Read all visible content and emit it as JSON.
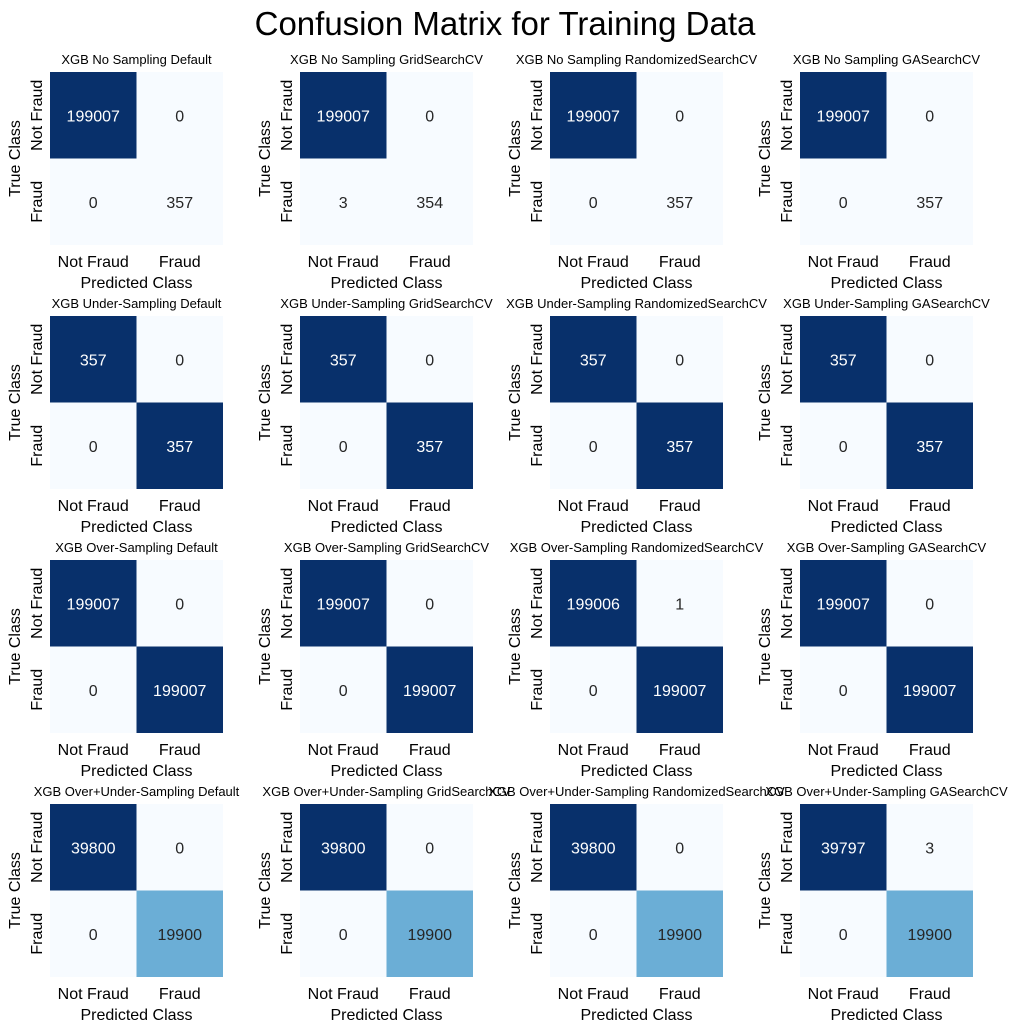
{
  "figure": {
    "title": "Confusion Matrix for Training Data"
  },
  "chart_data": [
    {
      "type": "heatmap",
      "title": "XGB No Sampling Default",
      "xlabel": "Predicted Class",
      "ylabel": "True Class",
      "x_ticks": [
        "Not Fraud",
        "Fraud"
      ],
      "y_ticks": [
        "Not Fraud",
        "Fraud"
      ],
      "matrix": [
        [
          199007,
          0
        ],
        [
          0,
          357
        ]
      ],
      "colormap": "Blues"
    },
    {
      "type": "heatmap",
      "title": "XGB No Sampling GridSearchCV",
      "xlabel": "Predicted Class",
      "ylabel": "True Class",
      "x_ticks": [
        "Not Fraud",
        "Fraud"
      ],
      "y_ticks": [
        "Not Fraud",
        "Fraud"
      ],
      "matrix": [
        [
          199007,
          0
        ],
        [
          3,
          354
        ]
      ],
      "colormap": "Blues"
    },
    {
      "type": "heatmap",
      "title": "XGB No Sampling RandomizedSearchCV",
      "xlabel": "Predicted Class",
      "ylabel": "True Class",
      "x_ticks": [
        "Not Fraud",
        "Fraud"
      ],
      "y_ticks": [
        "Not Fraud",
        "Fraud"
      ],
      "matrix": [
        [
          199007,
          0
        ],
        [
          0,
          357
        ]
      ],
      "colormap": "Blues"
    },
    {
      "type": "heatmap",
      "title": "XGB No Sampling GASearchCV",
      "xlabel": "Predicted Class",
      "ylabel": "True Class",
      "x_ticks": [
        "Not Fraud",
        "Fraud"
      ],
      "y_ticks": [
        "Not Fraud",
        "Fraud"
      ],
      "matrix": [
        [
          199007,
          0
        ],
        [
          0,
          357
        ]
      ],
      "colormap": "Blues"
    },
    {
      "type": "heatmap",
      "title": "XGB Under-Sampling Default",
      "xlabel": "Predicted Class",
      "ylabel": "True Class",
      "x_ticks": [
        "Not Fraud",
        "Fraud"
      ],
      "y_ticks": [
        "Not Fraud",
        "Fraud"
      ],
      "matrix": [
        [
          357,
          0
        ],
        [
          0,
          357
        ]
      ],
      "colormap": "Blues"
    },
    {
      "type": "heatmap",
      "title": "XGB Under-Sampling GridSearchCV",
      "xlabel": "Predicted Class",
      "ylabel": "True Class",
      "x_ticks": [
        "Not Fraud",
        "Fraud"
      ],
      "y_ticks": [
        "Not Fraud",
        "Fraud"
      ],
      "matrix": [
        [
          357,
          0
        ],
        [
          0,
          357
        ]
      ],
      "colormap": "Blues"
    },
    {
      "type": "heatmap",
      "title": "XGB Under-Sampling RandomizedSearchCV",
      "xlabel": "Predicted Class",
      "ylabel": "True Class",
      "x_ticks": [
        "Not Fraud",
        "Fraud"
      ],
      "y_ticks": [
        "Not Fraud",
        "Fraud"
      ],
      "matrix": [
        [
          357,
          0
        ],
        [
          0,
          357
        ]
      ],
      "colormap": "Blues"
    },
    {
      "type": "heatmap",
      "title": "XGB Under-Sampling GASearchCV",
      "xlabel": "Predicted Class",
      "ylabel": "True Class",
      "x_ticks": [
        "Not Fraud",
        "Fraud"
      ],
      "y_ticks": [
        "Not Fraud",
        "Fraud"
      ],
      "matrix": [
        [
          357,
          0
        ],
        [
          0,
          357
        ]
      ],
      "colormap": "Blues"
    },
    {
      "type": "heatmap",
      "title": "XGB Over-Sampling Default",
      "xlabel": "Predicted Class",
      "ylabel": "True Class",
      "x_ticks": [
        "Not Fraud",
        "Fraud"
      ],
      "y_ticks": [
        "Not Fraud",
        "Fraud"
      ],
      "matrix": [
        [
          199007,
          0
        ],
        [
          0,
          199007
        ]
      ],
      "colormap": "Blues"
    },
    {
      "type": "heatmap",
      "title": "XGB Over-Sampling GridSearchCV",
      "xlabel": "Predicted Class",
      "ylabel": "True Class",
      "x_ticks": [
        "Not Fraud",
        "Fraud"
      ],
      "y_ticks": [
        "Not Fraud",
        "Fraud"
      ],
      "matrix": [
        [
          199007,
          0
        ],
        [
          0,
          199007
        ]
      ],
      "colormap": "Blues"
    },
    {
      "type": "heatmap",
      "title": "XGB Over-Sampling RandomizedSearchCV",
      "xlabel": "Predicted Class",
      "ylabel": "True Class",
      "x_ticks": [
        "Not Fraud",
        "Fraud"
      ],
      "y_ticks": [
        "Not Fraud",
        "Fraud"
      ],
      "matrix": [
        [
          199006,
          1
        ],
        [
          0,
          199007
        ]
      ],
      "colormap": "Blues"
    },
    {
      "type": "heatmap",
      "title": "XGB Over-Sampling GASearchCV",
      "xlabel": "Predicted Class",
      "ylabel": "True Class",
      "x_ticks": [
        "Not Fraud",
        "Fraud"
      ],
      "y_ticks": [
        "Not Fraud",
        "Fraud"
      ],
      "matrix": [
        [
          199007,
          0
        ],
        [
          0,
          199007
        ]
      ],
      "colormap": "Blues"
    },
    {
      "type": "heatmap",
      "title": "XGB Over+Under-Sampling Default",
      "xlabel": "Predicted Class",
      "ylabel": "True Class",
      "x_ticks": [
        "Not Fraud",
        "Fraud"
      ],
      "y_ticks": [
        "Not Fraud",
        "Fraud"
      ],
      "matrix": [
        [
          39800,
          0
        ],
        [
          0,
          19900
        ]
      ],
      "colormap": "Blues"
    },
    {
      "type": "heatmap",
      "title": "XGB Over+Under-Sampling GridSearchCV",
      "xlabel": "Predicted Class",
      "ylabel": "True Class",
      "x_ticks": [
        "Not Fraud",
        "Fraud"
      ],
      "y_ticks": [
        "Not Fraud",
        "Fraud"
      ],
      "matrix": [
        [
          39800,
          0
        ],
        [
          0,
          19900
        ]
      ],
      "colormap": "Blues"
    },
    {
      "type": "heatmap",
      "title": "XGB Over+Under-Sampling RandomizedSearchCV",
      "xlabel": "Predicted Class",
      "ylabel": "True Class",
      "x_ticks": [
        "Not Fraud",
        "Fraud"
      ],
      "y_ticks": [
        "Not Fraud",
        "Fraud"
      ],
      "matrix": [
        [
          39800,
          0
        ],
        [
          0,
          19900
        ]
      ],
      "colormap": "Blues"
    },
    {
      "type": "heatmap",
      "title": "XGB Over+Under-Sampling GASearchCV",
      "xlabel": "Predicted Class",
      "ylabel": "True Class",
      "x_ticks": [
        "Not Fraud",
        "Fraud"
      ],
      "y_ticks": [
        "Not Fraud",
        "Fraud"
      ],
      "matrix": [
        [
          39797,
          3
        ],
        [
          0,
          19900
        ]
      ],
      "colormap": "Blues"
    }
  ]
}
